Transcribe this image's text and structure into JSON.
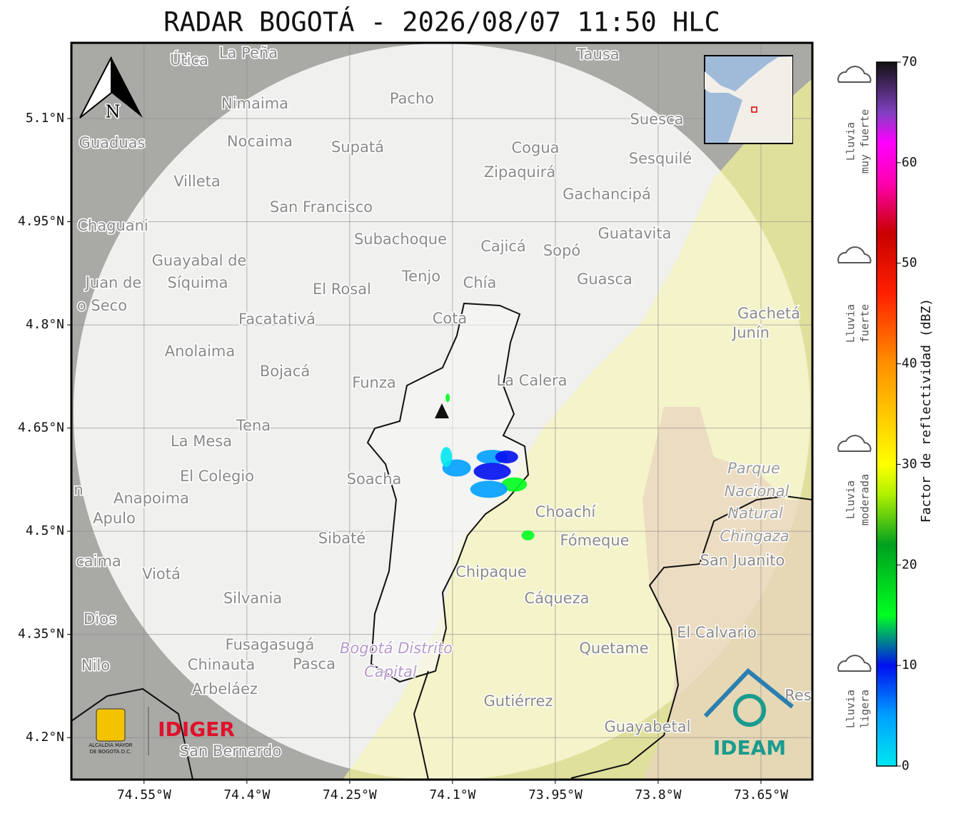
{
  "map": {
    "title": "RADAR BOGOTÁ - 2026/08/07 11:50 HLC",
    "xlim": [
      -74.656,
      -73.575
    ],
    "ylim": [
      4.139,
      5.21
    ],
    "xticks": [
      {
        "value": -74.55,
        "label": "74.55°W"
      },
      {
        "value": -74.4,
        "label": "74.4°W"
      },
      {
        "value": -74.25,
        "label": "74.25°W"
      },
      {
        "value": -74.1,
        "label": "74.1°W"
      },
      {
        "value": -73.95,
        "label": "73.95°W"
      },
      {
        "value": -73.8,
        "label": "73.8°W"
      },
      {
        "value": -73.65,
        "label": "73.65°W"
      }
    ],
    "yticks": [
      {
        "value": 5.1,
        "label": "5.1°N"
      },
      {
        "value": 4.95,
        "label": "4.95°N"
      },
      {
        "value": 4.8,
        "label": "4.8°N"
      },
      {
        "value": 4.65,
        "label": "4.65°N"
      },
      {
        "value": 4.5,
        "label": "4.5°N"
      },
      {
        "value": 4.35,
        "label": "4.35°N"
      },
      {
        "value": 4.2,
        "label": "4.2°N"
      }
    ],
    "grid": true,
    "places": [
      "Útica",
      "La Peña",
      "Tausa",
      "Pacho",
      "Nimaima",
      "Guaduas",
      "Nocaima",
      "Supatá",
      "Cogua",
      "Suesca",
      "Sesquilé",
      "Villeta",
      "Zipaquirá",
      "Gachancipá",
      "San Francisco",
      "Chaguani",
      "Subachoque",
      "Guatavita",
      "Cajicá",
      "Sopó",
      "Guayabal de",
      "Síquima",
      "Juan de",
      "o Seco",
      "Tenjo",
      "Chía",
      "El Rosal",
      "Guasca",
      "Facatativá",
      "Cota",
      "Gachetá",
      "Junín",
      "Anolaima",
      "Bojacá",
      "Funza",
      "La Calera",
      "Tena",
      "La Mesa",
      "Parque",
      "El Colegio",
      "Soacha",
      "Nacional",
      "Anapoima",
      "Natural",
      "Apulo",
      "Choachí",
      "Chingaza",
      "Sibaté",
      "Fómeque",
      "caima",
      "San Juanito",
      "Viotá",
      "Chipaque",
      "Silvania",
      "Cáqueza",
      "Dios",
      "El Calvario",
      "Fusagasugá",
      "Bogotá Distrito",
      "Quetame",
      "Nilo",
      "Chinauta",
      "Pasca",
      "Capital",
      "Arbeláez",
      "Gutiérrez",
      "Res",
      "Guayabetal",
      "San Bernardo",
      "n"
    ],
    "echoes": [
      {
        "lon": -74.042,
        "lat": 4.608,
        "dbz": 8
      },
      {
        "lon": -74.021,
        "lat": 4.608,
        "dbz": 12
      },
      {
        "lon": -74.094,
        "lat": 4.592,
        "dbz": 5
      },
      {
        "lon": -74.042,
        "lat": 4.587,
        "dbz": 10
      },
      {
        "lon": -74.01,
        "lat": 4.568,
        "dbz": 18
      },
      {
        "lon": -74.047,
        "lat": 4.561,
        "dbz": 9
      },
      {
        "lon": -73.99,
        "lat": 4.494,
        "dbz": 17
      },
      {
        "lon": -74.109,
        "lat": 4.608,
        "dbz": 3
      },
      {
        "lon": -74.107,
        "lat": 4.694,
        "dbz": 15
      }
    ],
    "north": "N"
  },
  "colorbar": {
    "label": "Factor de reflectividad (dBZ)",
    "lim": [
      0,
      70
    ],
    "ticks": [
      0,
      10,
      20,
      30,
      40,
      50,
      60,
      70
    ]
  },
  "rain_levels": [
    [
      "Lluvia",
      "muy fuerte"
    ],
    [
      "Lluvia",
      "fuerte"
    ],
    [
      "Lluvia",
      "moderada"
    ],
    [
      "Lluvia",
      "ligera"
    ]
  ],
  "logos": {
    "idiger": "IDIGER",
    "ideam": "IDEAM",
    "alcaldia": [
      "ALCALDÍA MAYOR",
      "DE BOGOTÁ D.C."
    ]
  }
}
